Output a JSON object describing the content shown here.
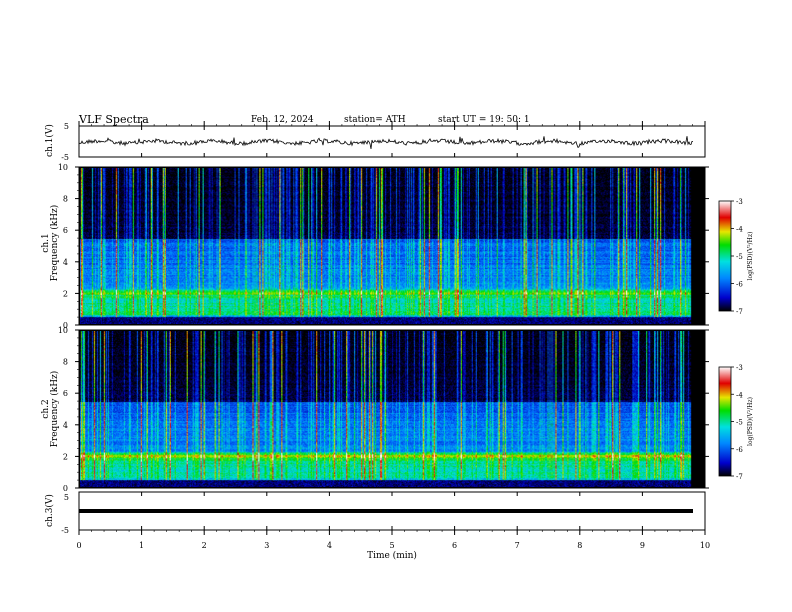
{
  "header": {
    "title": "VLF  Spectra",
    "date": "Feb. 12, 2024",
    "station": "station= ATH",
    "start": "start  UT  =    19: 50: 1"
  },
  "panels": {
    "ch1_wave_label": "ch.1(V)",
    "ch1_spec_label_a": "ch.1",
    "ch1_spec_label_b": "Frequency  (kHz)",
    "ch2_spec_label_a": "ch.2",
    "ch2_spec_label_b": "Frequency  (kHz)",
    "ch3_wave_label": "ch.3(V)"
  },
  "colorbar": {
    "label": "log(PSD)(V²/Hz)",
    "ticks": [
      "-3",
      "-4",
      "-5",
      "-6",
      "-7"
    ]
  },
  "colors": {
    "black": "#000000",
    "blue": "#0000cc",
    "cyan": "#00e0e0",
    "green": "#00dd00",
    "yellow": "#e6e600",
    "red": "#e00000",
    "white": "#ffffff"
  },
  "chart_data": [
    {
      "type": "line",
      "name": "ch.1 waveform",
      "ylabel": "ch.1(V)",
      "ylim": [
        -5,
        5
      ],
      "yticks": [
        "5",
        "-5"
      ],
      "x_range_min": [
        0,
        10
      ]
    },
    {
      "type": "heatmap",
      "ylabel": "ch.1 Frequency (kHz)",
      "ylim": [
        0,
        10
      ],
      "yticks": [
        "10",
        "8",
        "6",
        "4",
        "2",
        "0"
      ],
      "xlim": [
        0,
        10
      ],
      "colorbar_range": [
        -7,
        -3
      ],
      "features": "broadband impulsive sferics (vertical streaks) across 0-10 kHz; enhanced band near 2 kHz"
    },
    {
      "type": "heatmap",
      "ylabel": "ch.2 Frequency (kHz)",
      "ylim": [
        0,
        10
      ],
      "yticks": [
        "10",
        "8",
        "6",
        "4",
        "2",
        "0"
      ],
      "xlim": [
        0,
        10
      ],
      "colorbar_range": [
        -7,
        -3
      ],
      "features": "sferics and strong band near 2 kHz with red segments"
    },
    {
      "type": "line",
      "name": "ch.3 waveform",
      "ylabel": "ch.3(V)",
      "ylim": [
        -5,
        5
      ],
      "yticks": [
        "5",
        "-5"
      ],
      "xlabel": "Time  (min)",
      "xlim": [
        0,
        10
      ],
      "xticks": [
        "0",
        "1",
        "2",
        "3",
        "4",
        "5",
        "6",
        "7",
        "8",
        "9",
        "10"
      ]
    }
  ]
}
